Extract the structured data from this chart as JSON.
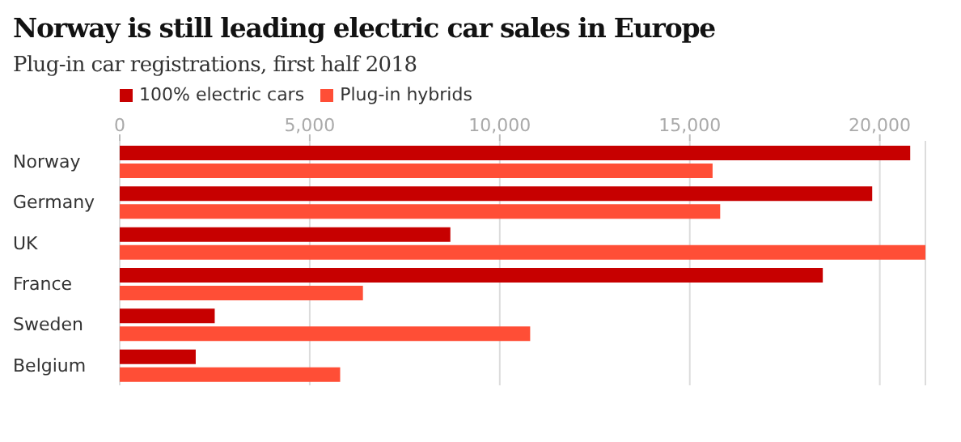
{
  "chart_data": {
    "type": "bar",
    "orientation": "horizontal",
    "title": "Norway is still leading electric car sales in Europe",
    "subtitle": "Plug-in car registrations, first half 2018",
    "categories": [
      "Norway",
      "Germany",
      "UK",
      "France",
      "Sweden",
      "Belgium"
    ],
    "series": [
      {
        "name": "100% electric cars",
        "color": "#c70000",
        "values": [
          20800,
          19800,
          8700,
          18500,
          2500,
          2000
        ]
      },
      {
        "name": "Plug-in hybrids",
        "color": "#ff4e36",
        "values": [
          15600,
          15800,
          21200,
          6400,
          10800,
          5800
        ]
      }
    ],
    "xlim": [
      0,
      21200
    ],
    "xticks": [
      0,
      {
        "value": 5000,
        "label": "5,000"
      },
      {
        "value": 10000,
        "label": "10,000"
      },
      {
        "value": 15000,
        "label": "15,000"
      },
      {
        "value": 20000,
        "label": "20,000"
      }
    ],
    "grid": "x",
    "legend": "top left"
  }
}
